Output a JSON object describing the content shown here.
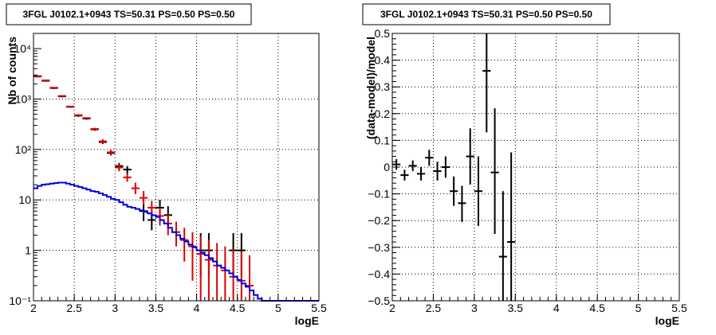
{
  "chart_data": [
    {
      "type": "scatter",
      "title": "3FGL J0102.1+0943 TS=50.31 PS=0.50 PS=0.50",
      "xlabel": "logE",
      "ylabel": "Nb of counts",
      "xlim": [
        2,
        5.5
      ],
      "ylim": [
        0.1,
        20000
      ],
      "yscale": "log",
      "grid": true,
      "xticks": [
        2,
        2.5,
        3,
        3.5,
        4,
        4.5,
        5,
        5.5
      ],
      "xtick_labels": [
        "2",
        "2.5",
        "3",
        "3.5",
        "4",
        "4.5",
        "5",
        "5.5"
      ],
      "yticks": [
        0.1,
        1,
        10,
        100,
        1000,
        10000
      ],
      "ytick_labels": [
        "10⁻¹",
        "1",
        "10",
        "10²",
        "10³",
        "10⁴"
      ],
      "series": [
        {
          "color": "#000000",
          "points": [
            {
              "x": 2.05,
              "y": 2800,
              "lo": 2700,
              "hi": 2900
            },
            {
              "x": 2.15,
              "y": 2300,
              "lo": 2210,
              "hi": 2390
            },
            {
              "x": 2.25,
              "y": 1650,
              "lo": 1580,
              "hi": 1720
            },
            {
              "x": 2.35,
              "y": 1130,
              "lo": 1080,
              "hi": 1180
            },
            {
              "x": 2.45,
              "y": 700,
              "lo": 670,
              "hi": 730
            },
            {
              "x": 2.55,
              "y": 470,
              "lo": 445,
              "hi": 495
            },
            {
              "x": 2.65,
              "y": 410,
              "lo": 390,
              "hi": 430
            },
            {
              "x": 2.75,
              "y": 250,
              "lo": 235,
              "hi": 265
            },
            {
              "x": 2.85,
              "y": 140,
              "lo": 128,
              "hi": 152
            },
            {
              "x": 2.95,
              "y": 85,
              "lo": 76,
              "hi": 94
            },
            {
              "x": 3.05,
              "y": 47,
              "lo": 40,
              "hi": 54
            },
            {
              "x": 3.15,
              "y": 40,
              "lo": 33,
              "hi": 47
            },
            {
              "x": 3.35,
              "y": 6,
              "lo": 3.8,
              "hi": 9
            },
            {
              "x": 3.45,
              "y": 4,
              "lo": 2.5,
              "hi": 6
            },
            {
              "x": 3.55,
              "y": 7,
              "lo": 4.5,
              "hi": 10
            },
            {
              "x": 3.65,
              "y": 5,
              "lo": 3,
              "hi": 7.5
            },
            {
              "x": 4.05,
              "y": 1,
              "lo": 0.3,
              "hi": 2.2
            },
            {
              "x": 4.15,
              "y": 1,
              "lo": 0.3,
              "hi": 2.2
            },
            {
              "x": 4.45,
              "y": 1,
              "lo": 0.3,
              "hi": 2.2
            },
            {
              "x": 4.55,
              "y": 1,
              "lo": 0.3,
              "hi": 2.2
            }
          ]
        },
        {
          "color": "#dd0000",
          "points": [
            {
              "x": 2.05,
              "y": 2850,
              "lo": 2850,
              "hi": 2850
            },
            {
              "x": 2.15,
              "y": 2350,
              "lo": 2350,
              "hi": 2350
            },
            {
              "x": 2.25,
              "y": 1680,
              "lo": 1680,
              "hi": 1680
            },
            {
              "x": 2.35,
              "y": 1150,
              "lo": 1150,
              "hi": 1150
            },
            {
              "x": 2.45,
              "y": 710,
              "lo": 710,
              "hi": 710
            },
            {
              "x": 2.55,
              "y": 480,
              "lo": 480,
              "hi": 480
            },
            {
              "x": 2.65,
              "y": 420,
              "lo": 420,
              "hi": 420
            },
            {
              "x": 2.75,
              "y": 255,
              "lo": 240,
              "hi": 270
            },
            {
              "x": 2.85,
              "y": 145,
              "lo": 130,
              "hi": 160
            },
            {
              "x": 2.95,
              "y": 88,
              "lo": 78,
              "hi": 98
            },
            {
              "x": 3.05,
              "y": 44,
              "lo": 37,
              "hi": 51
            },
            {
              "x": 3.15,
              "y": 28,
              "lo": 23,
              "hi": 34
            },
            {
              "x": 3.25,
              "y": 17,
              "lo": 13,
              "hi": 22
            },
            {
              "x": 3.35,
              "y": 11,
              "lo": 8,
              "hi": 15
            },
            {
              "x": 3.45,
              "y": 7,
              "lo": 4.8,
              "hi": 9.5
            },
            {
              "x": 3.55,
              "y": 4.8,
              "lo": 3.1,
              "hi": 7
            },
            {
              "x": 3.65,
              "y": 3.4,
              "lo": 2,
              "hi": 5.2
            },
            {
              "x": 3.75,
              "y": 2.3,
              "lo": 1.2,
              "hi": 3.7
            },
            {
              "x": 3.85,
              "y": 1.6,
              "lo": 0.6,
              "hi": 2.8
            },
            {
              "x": 3.95,
              "y": 1.2,
              "lo": 0.25,
              "hi": 2.3
            },
            {
              "x": 4.05,
              "y": 0.85,
              "lo": 0.1,
              "hi": 1.9
            },
            {
              "x": 4.15,
              "y": 0.65,
              "lo": 0.1,
              "hi": 1.6
            },
            {
              "x": 4.25,
              "y": 0.5,
              "lo": 0.1,
              "hi": 1.4
            },
            {
              "x": 4.35,
              "y": 0.4,
              "lo": 0.1,
              "hi": 1.2
            },
            {
              "x": 4.45,
              "y": 0.3,
              "lo": 0.1,
              "hi": 1.05
            },
            {
              "x": 4.55,
              "y": 0.25,
              "lo": 0.1,
              "hi": 0.95
            },
            {
              "x": 4.65,
              "y": 0.2,
              "lo": 0.1,
              "hi": 0.8
            }
          ]
        },
        {
          "color": "#0000dd",
          "histogram": true,
          "edges": [
            2.0,
            2.05,
            2.1,
            2.15,
            2.2,
            2.25,
            2.3,
            2.35,
            2.4,
            2.45,
            2.5,
            2.55,
            2.6,
            2.65,
            2.7,
            2.75,
            2.8,
            2.85,
            2.9,
            2.95,
            3.0,
            3.05,
            3.1,
            3.15,
            3.2,
            3.25,
            3.3,
            3.35,
            3.4,
            3.45,
            3.5,
            3.55,
            3.6,
            3.65,
            3.7,
            3.75,
            3.8,
            3.85,
            3.9,
            3.95,
            4.0,
            4.05,
            4.1,
            4.15,
            4.2,
            4.25,
            4.3,
            4.35,
            4.4,
            4.45,
            4.5,
            4.55,
            4.6,
            4.65,
            4.7,
            4.75,
            4.8,
            5.0,
            5.5
          ],
          "values": [
            17,
            19,
            20,
            20.5,
            21,
            21.5,
            22,
            22,
            21,
            20,
            19,
            18,
            17,
            16,
            15,
            14.5,
            13.5,
            12.5,
            11.5,
            10.5,
            10,
            9,
            8,
            7.3,
            7,
            6.6,
            6.2,
            5.8,
            5.4,
            5,
            4.6,
            4,
            3.4,
            2.8,
            2.3,
            2,
            1.7,
            1.5,
            1.3,
            1.15,
            1,
            0.9,
            0.8,
            0.7,
            0.6,
            0.5,
            0.45,
            0.4,
            0.35,
            0.3,
            0.26,
            0.22,
            0.19,
            0.16,
            0.13,
            0.11,
            0.1,
            0.1
          ]
        }
      ]
    },
    {
      "type": "scatter",
      "title": "3FGL J0102.1+0943 TS=50.31 PS=0.50 PS=0.50",
      "xlabel": "logE",
      "ylabel": "(data-model)/model",
      "xlim": [
        2,
        5.5
      ],
      "ylim": [
        -0.5,
        0.5
      ],
      "grid": true,
      "xticks": [
        2,
        2.5,
        3,
        3.5,
        4,
        4.5,
        5,
        5.5
      ],
      "xtick_labels": [
        "2",
        "2.5",
        "3",
        "3.5",
        "4",
        "4.5",
        "5",
        "5.5"
      ],
      "yticks": [
        -0.5,
        -0.4,
        -0.3,
        -0.2,
        -0.1,
        0,
        0.1,
        0.2,
        0.3,
        0.4,
        0.5
      ],
      "ytick_labels": [
        "−0.5",
        "−0.4",
        "−0.3",
        "−0.2",
        "−0.1",
        "0",
        "0.1",
        "0.2",
        "0.3",
        "0.4",
        "0.5"
      ],
      "series": [
        {
          "color": "#000000",
          "points": [
            {
              "x": 2.05,
              "y": 0.01,
              "lo": -0.01,
              "hi": 0.03
            },
            {
              "x": 2.15,
              "y": -0.03,
              "lo": -0.05,
              "hi": -0.01
            },
            {
              "x": 2.25,
              "y": 0.005,
              "lo": -0.015,
              "hi": 0.025
            },
            {
              "x": 2.35,
              "y": -0.025,
              "lo": -0.05,
              "hi": 0.0
            },
            {
              "x": 2.45,
              "y": 0.035,
              "lo": 0.005,
              "hi": 0.065
            },
            {
              "x": 2.55,
              "y": -0.015,
              "lo": -0.05,
              "hi": 0.02
            },
            {
              "x": 2.65,
              "y": 0.0,
              "lo": -0.04,
              "hi": 0.04
            },
            {
              "x": 2.75,
              "y": -0.09,
              "lo": -0.145,
              "hi": -0.035
            },
            {
              "x": 2.85,
              "y": -0.135,
              "lo": -0.205,
              "hi": -0.07
            },
            {
              "x": 2.95,
              "y": 0.04,
              "lo": -0.065,
              "hi": 0.145
            },
            {
              "x": 3.05,
              "y": -0.09,
              "lo": -0.22,
              "hi": 0.04
            },
            {
              "x": 3.15,
              "y": 0.36,
              "lo": 0.13,
              "hi": 0.5
            },
            {
              "x": 3.25,
              "y": -0.02,
              "lo": -0.25,
              "hi": 0.22
            },
            {
              "x": 3.35,
              "y": -0.335,
              "lo": -0.5,
              "hi": -0.09
            },
            {
              "x": 3.45,
              "y": -0.28,
              "lo": -0.5,
              "hi": 0.055
            }
          ]
        }
      ]
    }
  ]
}
